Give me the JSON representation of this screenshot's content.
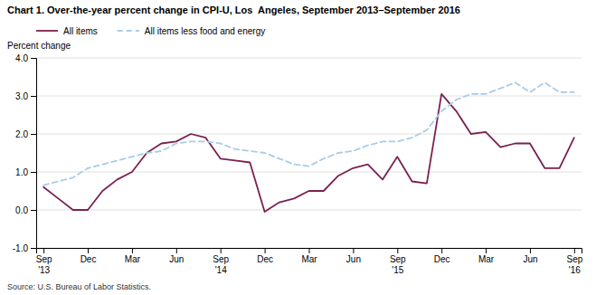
{
  "chart_data": {
    "type": "line",
    "title": "Chart 1. Over-the-year percent change in CPI-U, Los  Angeles, September 2013–September 2016",
    "ylabel": "Percent change",
    "source": "Source: U.S. Bureau of Labor Statistics.",
    "categories": [
      "Sep\n'13",
      null,
      null,
      "Dec",
      null,
      null,
      "Mar",
      null,
      null,
      "Jun",
      null,
      null,
      "Sep\n'14",
      null,
      null,
      "Dec",
      null,
      null,
      "Mar",
      null,
      null,
      "Jun",
      null,
      null,
      "Sep\n'15",
      null,
      null,
      "Dec",
      null,
      null,
      "Mar",
      null,
      null,
      "Jun",
      null,
      null,
      "Sep\n'16"
    ],
    "series": [
      {
        "name": "All items",
        "color": "#7b2151",
        "line_style": "solid",
        "values": [
          0.6,
          0.3,
          0.0,
          0.0,
          0.5,
          0.8,
          1.0,
          1.5,
          1.75,
          1.8,
          2.0,
          1.9,
          1.35,
          1.3,
          1.25,
          -0.05,
          0.2,
          0.3,
          0.5,
          0.5,
          0.9,
          1.1,
          1.2,
          0.8,
          1.4,
          0.75,
          0.7,
          3.05,
          2.6,
          2.0,
          2.05,
          1.65,
          1.75,
          1.75,
          1.1,
          1.1,
          1.9
        ]
      },
      {
        "name": "All items less food and energy",
        "color": "#a8cce8",
        "line_style": "dashed",
        "values": [
          0.65,
          0.75,
          0.85,
          1.1,
          1.2,
          1.3,
          1.4,
          1.5,
          1.55,
          1.75,
          1.8,
          1.8,
          1.75,
          1.6,
          1.55,
          1.5,
          1.35,
          1.2,
          1.15,
          1.35,
          1.5,
          1.55,
          1.7,
          1.8,
          1.8,
          1.9,
          2.1,
          2.6,
          2.9,
          3.05,
          3.05,
          3.2,
          3.35,
          3.1,
          3.35,
          3.1,
          3.1
        ]
      }
    ],
    "ylim": [
      -1.0,
      4.0
    ],
    "yticks": [
      {
        "value": -1.0,
        "label": "-1.0"
      },
      {
        "value": 0.0,
        "label": "0.0"
      },
      {
        "value": 1.0,
        "label": "1.0"
      },
      {
        "value": 2.0,
        "label": "2.0"
      },
      {
        "value": 3.0,
        "label": "3.0"
      },
      {
        "value": 4.0,
        "label": "4.0"
      }
    ],
    "grid": true,
    "legend": "top"
  }
}
